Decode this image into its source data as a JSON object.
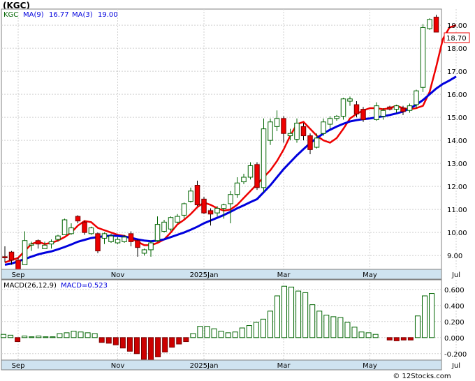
{
  "title": "(KGC)",
  "footer_text": "© 12Stocks.com",
  "chart_data": [
    {
      "type": "candlestick",
      "legend": {
        "symbol": "KGC",
        "ma_fast_label": "MA(9)",
        "ma_fast_value": "16.77",
        "ma_slow_label": "MA(3)",
        "ma_slow_value": "19.00"
      },
      "last_price_label": "18.70",
      "ylim": [
        8.4,
        19.7
      ],
      "yticks": [
        "19.00",
        "18.00",
        "17.00",
        "16.00",
        "15.00",
        "14.00",
        "13.00",
        "12.00",
        "11.00",
        "10.00",
        "9.00"
      ],
      "xticks": [
        {
          "label": "Sep",
          "index": 2
        },
        {
          "label": "Nov",
          "index": 17
        },
        {
          "label": "2025Jan",
          "index": 30
        },
        {
          "label": "Mar",
          "index": 42
        },
        {
          "label": "May",
          "index": 55
        },
        {
          "label": "Jul",
          "index": 68
        }
      ],
      "colors": {
        "up": "#ffffff",
        "up_border": "#006400",
        "down": "#ee0000",
        "ma_fast": "#0000dd",
        "ma_slow": "#ee0000"
      },
      "candles": [
        [
          8.95,
          8.9,
          9.4,
          8.7
        ],
        [
          9.15,
          8.8,
          9.2,
          8.6
        ],
        [
          8.8,
          8.15,
          8.9,
          8.15
        ],
        [
          8.6,
          9.65,
          10.05,
          8.6
        ],
        [
          9.45,
          9.5,
          9.6,
          9.2
        ],
        [
          9.65,
          9.5,
          9.7,
          9.3
        ],
        [
          9.3,
          9.45,
          9.6,
          9.3
        ],
        [
          9.5,
          9.6,
          9.7,
          9.3
        ],
        [
          9.7,
          9.85,
          9.9,
          9.6
        ],
        [
          9.9,
          10.55,
          10.6,
          9.9
        ],
        [
          9.95,
          10.2,
          10.4,
          9.9
        ],
        [
          10.7,
          10.5,
          10.75,
          10.4
        ],
        [
          10.45,
          10.0,
          10.5,
          9.9
        ],
        [
          9.95,
          10.2,
          10.25,
          9.9
        ],
        [
          9.95,
          9.2,
          10.0,
          9.1
        ],
        [
          9.75,
          9.95,
          10.0,
          9.5
        ],
        [
          9.6,
          9.85,
          9.95,
          9.55
        ],
        [
          9.55,
          9.7,
          9.8,
          9.5
        ],
        [
          9.6,
          9.8,
          9.9,
          9.55
        ],
        [
          9.95,
          9.6,
          10.05,
          9.4
        ],
        [
          9.65,
          9.35,
          9.7,
          8.95
        ],
        [
          9.1,
          9.25,
          9.3,
          9.0
        ],
        [
          9.25,
          9.55,
          9.65,
          8.95
        ],
        [
          9.65,
          10.35,
          10.7,
          9.6
        ],
        [
          10.05,
          10.45,
          10.55,
          10.0
        ],
        [
          10.15,
          10.65,
          10.7,
          10.05
        ],
        [
          10.45,
          10.7,
          10.8,
          10.4
        ],
        [
          10.75,
          11.25,
          11.3,
          10.6
        ],
        [
          11.35,
          11.8,
          11.95,
          11.3
        ],
        [
          12.05,
          11.2,
          12.25,
          11.15
        ],
        [
          11.45,
          10.85,
          11.55,
          10.8
        ],
        [
          10.95,
          10.8,
          11.05,
          10.3
        ],
        [
          10.85,
          11.05,
          11.15,
          10.7
        ],
        [
          11.05,
          11.2,
          11.25,
          10.6
        ],
        [
          11.25,
          11.65,
          11.8,
          10.4
        ],
        [
          11.65,
          12.15,
          12.4,
          11.5
        ],
        [
          12.2,
          12.4,
          12.55,
          12.1
        ],
        [
          12.4,
          12.9,
          13.05,
          12.3
        ],
        [
          12.95,
          11.95,
          13.05,
          11.85
        ],
        [
          11.95,
          14.5,
          14.95,
          11.75
        ],
        [
          14.0,
          14.8,
          14.95,
          13.8
        ],
        [
          14.6,
          14.95,
          15.3,
          14.4
        ],
        [
          14.95,
          14.3,
          15.05,
          13.9
        ],
        [
          14.2,
          14.3,
          14.5,
          14.0
        ],
        [
          14.05,
          14.75,
          14.95,
          13.9
        ],
        [
          14.6,
          14.2,
          14.75,
          14.0
        ],
        [
          14.2,
          13.6,
          14.3,
          13.4
        ],
        [
          13.7,
          14.1,
          14.3,
          13.65
        ],
        [
          14.3,
          14.8,
          14.95,
          14.2
        ],
        [
          14.7,
          14.95,
          15.05,
          14.5
        ],
        [
          14.95,
          15.05,
          15.1,
          14.85
        ],
        [
          15.05,
          15.8,
          15.85,
          14.9
        ],
        [
          15.7,
          15.8,
          15.9,
          15.5
        ],
        [
          15.55,
          15.15,
          15.7,
          15.0
        ],
        [
          15.35,
          14.9,
          15.45,
          14.8
        ],
        [
          14.9,
          15.5,
          15.65,
          14.85
        ],
        [
          15.05,
          15.3,
          15.4,
          14.9
        ],
        [
          15.45,
          15.35,
          15.5,
          15.3
        ],
        [
          15.35,
          15.5,
          15.55,
          15.2
        ],
        [
          15.4,
          15.25,
          15.5,
          15.1
        ],
        [
          15.3,
          15.5,
          15.6,
          15.2
        ],
        [
          15.55,
          16.15,
          16.2,
          15.4
        ],
        [
          16.3,
          18.9,
          19.05,
          16.1
        ],
        [
          18.85,
          19.25,
          19.3,
          18.8
        ],
        [
          19.35,
          18.7,
          19.45,
          18.7
        ]
      ],
      "ma_fast": [
        8.6,
        8.65,
        8.75,
        8.85,
        8.95,
        9.05,
        9.12,
        9.18,
        9.27,
        9.37,
        9.48,
        9.6,
        9.68,
        9.76,
        9.8,
        9.84,
        9.86,
        9.85,
        9.82,
        9.77,
        9.7,
        9.65,
        9.62,
        9.65,
        9.7,
        9.8,
        9.9,
        10.0,
        10.12,
        10.25,
        10.4,
        10.52,
        10.64,
        10.76,
        10.9,
        11.05,
        11.18,
        11.32,
        11.45,
        11.75,
        12.05,
        12.4,
        12.75,
        13.05,
        13.35,
        13.62,
        13.88,
        14.1,
        14.3,
        14.46,
        14.6,
        14.72,
        14.82,
        14.88,
        14.92,
        14.95,
        15.0,
        15.05,
        15.1,
        15.17,
        15.25,
        15.38,
        15.55,
        15.75,
        16.0,
        16.25,
        16.45,
        16.6,
        16.77
      ],
      "ma_slow": [
        8.7,
        8.8,
        8.9,
        9.2,
        9.5,
        9.6,
        9.5,
        9.55,
        9.65,
        9.8,
        10.0,
        10.3,
        10.5,
        10.45,
        10.2,
        10.1,
        10.0,
        9.9,
        9.85,
        9.75,
        9.6,
        9.45,
        9.45,
        9.55,
        9.7,
        10.0,
        10.35,
        10.55,
        10.8,
        11.1,
        11.3,
        11.2,
        11.05,
        10.95,
        11.0,
        11.2,
        11.5,
        11.8,
        12.1,
        12.4,
        12.7,
        13.1,
        13.6,
        14.2,
        14.7,
        14.8,
        14.5,
        14.2,
        14.0,
        13.9,
        14.1,
        14.5,
        14.95,
        15.15,
        15.3,
        15.4,
        15.4,
        15.35,
        15.4,
        15.5,
        15.4,
        15.35,
        15.4,
        15.5,
        16.1,
        17.2,
        18.4,
        18.9,
        19.0
      ],
      "ma_slow_start": 32
    },
    {
      "type": "bar",
      "legend": {
        "label": "MACD(26,12,9)",
        "value_label": "MACD=0.523"
      },
      "ylim": [
        -0.28,
        0.72
      ],
      "yticks": [
        "0.600",
        "0.400",
        "0.200",
        "0.000",
        "-0.200"
      ],
      "values": [
        0.04,
        0.03,
        -0.05,
        0.02,
        0.01,
        0.02,
        0.01,
        0.01,
        0.05,
        0.06,
        0.08,
        0.07,
        0.06,
        0.05,
        -0.06,
        -0.07,
        -0.09,
        -0.13,
        -0.17,
        -0.2,
        -0.27,
        -0.29,
        -0.24,
        -0.18,
        -0.12,
        -0.08,
        -0.05,
        0.05,
        0.14,
        0.14,
        0.11,
        0.08,
        0.06,
        0.07,
        0.12,
        0.15,
        0.19,
        0.23,
        0.33,
        0.52,
        0.64,
        0.63,
        0.58,
        0.56,
        0.41,
        0.33,
        0.28,
        0.26,
        0.25,
        0.19,
        0.13,
        0.07,
        0.06,
        0.04,
        -0.03,
        -0.04,
        -0.03,
        -0.03,
        0.27,
        0.52,
        0.55
      ],
      "value_slots": [
        0,
        1,
        2,
        3,
        4,
        5,
        6,
        7,
        8,
        9,
        10,
        11,
        12,
        13,
        14,
        15,
        16,
        17,
        18,
        19,
        20,
        21,
        22,
        23,
        24,
        25,
        26,
        27,
        28,
        29,
        30,
        31,
        32,
        33,
        34,
        35,
        36,
        37,
        38,
        39,
        40,
        41,
        42,
        43,
        44,
        45,
        46,
        47,
        48,
        49,
        50,
        51,
        52,
        53,
        55,
        56,
        57,
        58,
        59,
        60,
        61
      ],
      "xticks": [
        {
          "label": "Sep",
          "index": 2
        },
        {
          "label": "Nov",
          "index": 17
        },
        {
          "label": "2025Jan",
          "index": 30
        },
        {
          "label": "Mar",
          "index": 42
        },
        {
          "label": "May",
          "index": 55
        },
        {
          "label": "Jul",
          "index": 68
        }
      ]
    }
  ]
}
